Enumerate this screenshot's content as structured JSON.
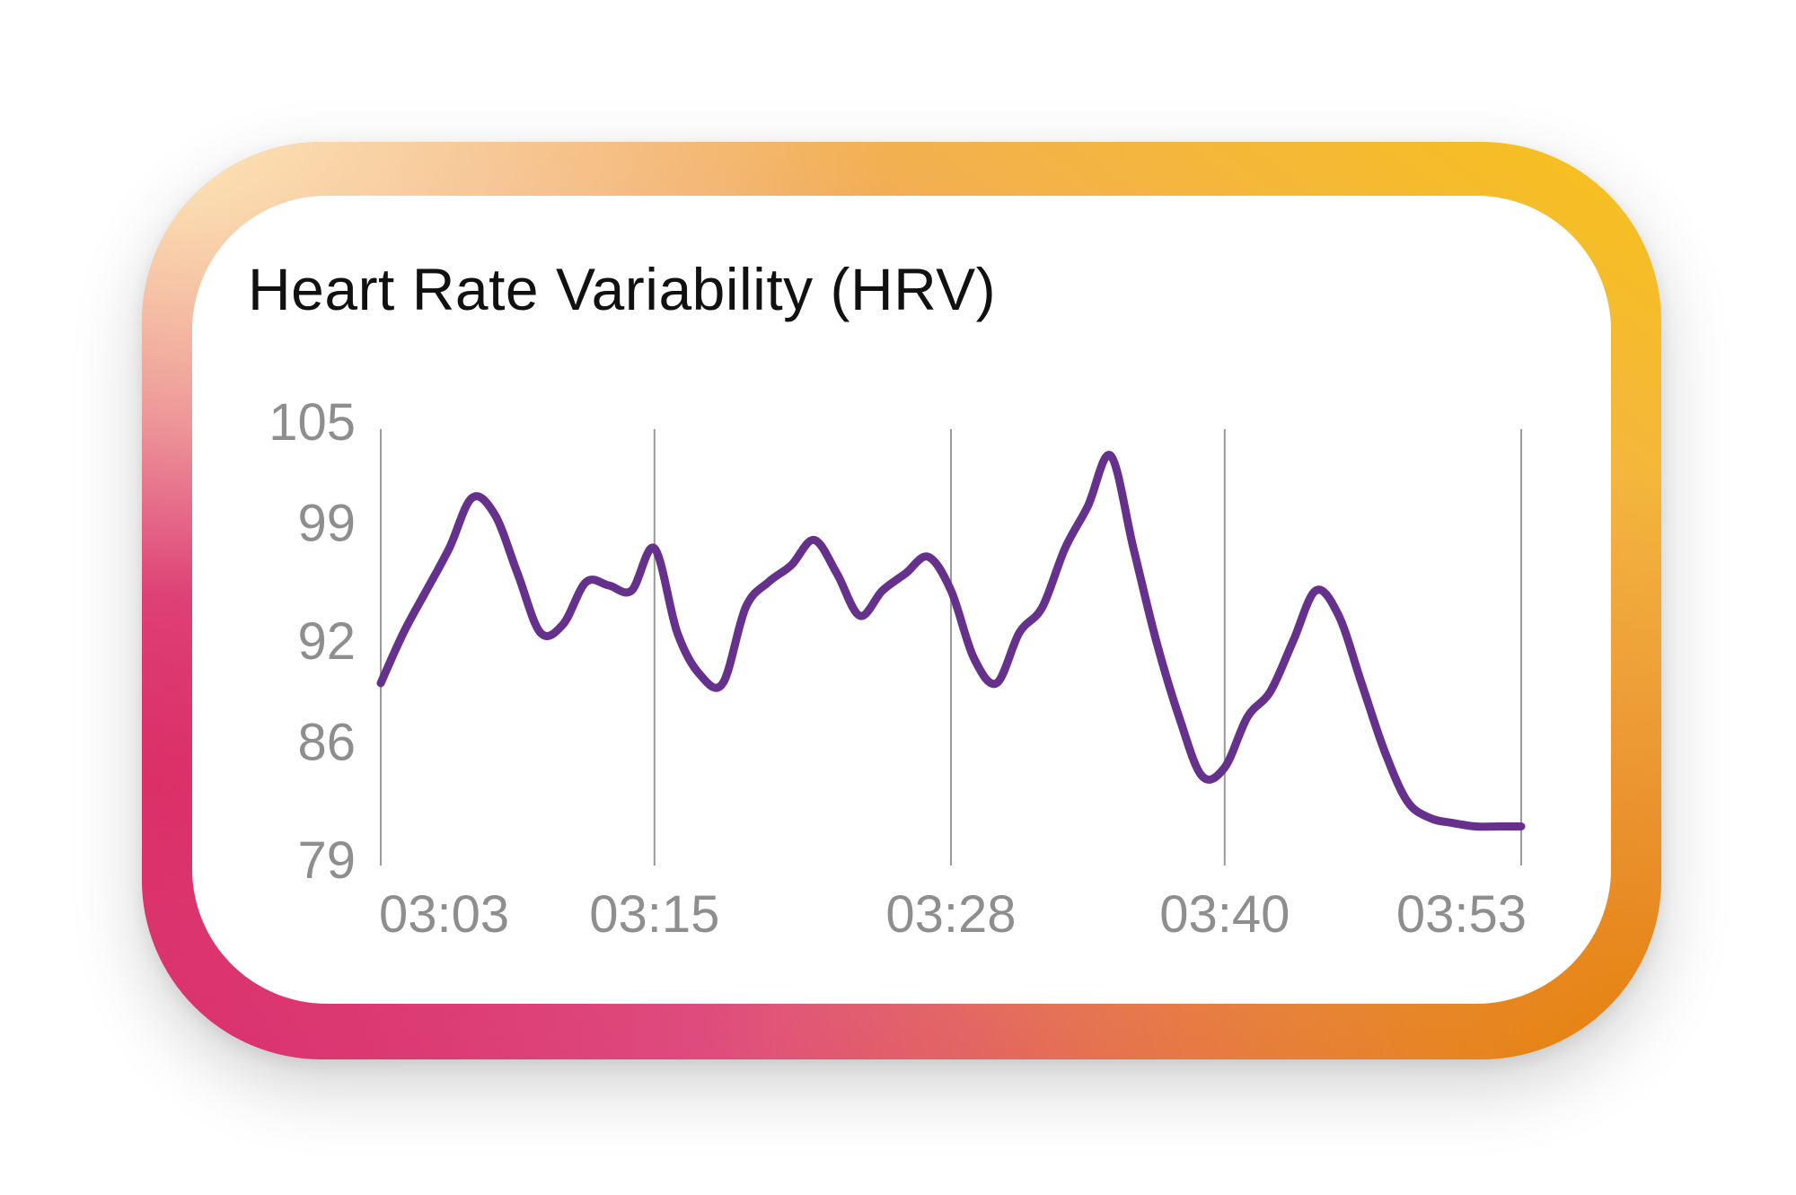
{
  "chart_data": {
    "type": "line",
    "title": "Heart Rate Variability (HRV)",
    "xlabel": "",
    "ylabel": "",
    "x_ticks": [
      "03:03",
      "03:15",
      "03:28",
      "03:40",
      "03:53"
    ],
    "y_ticks": [
      105,
      99,
      92,
      86,
      79
    ],
    "ylim": [
      79,
      105
    ],
    "grid": "vertical lines at x ticks",
    "colors": {
      "line": "#65318d",
      "grid": "#9a9a9a",
      "tick_text": "#8e8e8e"
    },
    "series": [
      {
        "x": [
          "03:03",
          "03:04",
          "03:05",
          "03:06",
          "03:07",
          "03:08",
          "03:09",
          "03:10",
          "03:11",
          "03:12",
          "03:13",
          "03:14",
          "03:15",
          "03:16",
          "03:17",
          "03:18",
          "03:19",
          "03:20",
          "03:21",
          "03:22",
          "03:23",
          "03:24",
          "03:25",
          "03:26",
          "03:27",
          "03:28",
          "03:29",
          "03:30",
          "03:31",
          "03:32",
          "03:33",
          "03:34",
          "03:35",
          "03:36",
          "03:37",
          "03:38",
          "03:39",
          "03:40",
          "03:41",
          "03:42",
          "03:43",
          "03:44",
          "03:45",
          "03:46",
          "03:47",
          "03:48",
          "03:49",
          "03:50",
          "03:51",
          "03:52",
          "03:53"
        ],
        "values": [
          89.5,
          92.5,
          95,
          97.5,
          100.5,
          99.5,
          96,
          92.5,
          93,
          95.5,
          95.3,
          95,
          97.5,
          92.5,
          90,
          89.5,
          94,
          95.5,
          96.5,
          98,
          96,
          93.5,
          95,
          96,
          97,
          95,
          91,
          89.5,
          92.5,
          94,
          97.5,
          100,
          103,
          97.5,
          92,
          87.5,
          84,
          84.5,
          87.5,
          89,
          92,
          95,
          93.5,
          89.5,
          85.5,
          82.5,
          81.5,
          81.2,
          81,
          81,
          81
        ]
      }
    ]
  }
}
